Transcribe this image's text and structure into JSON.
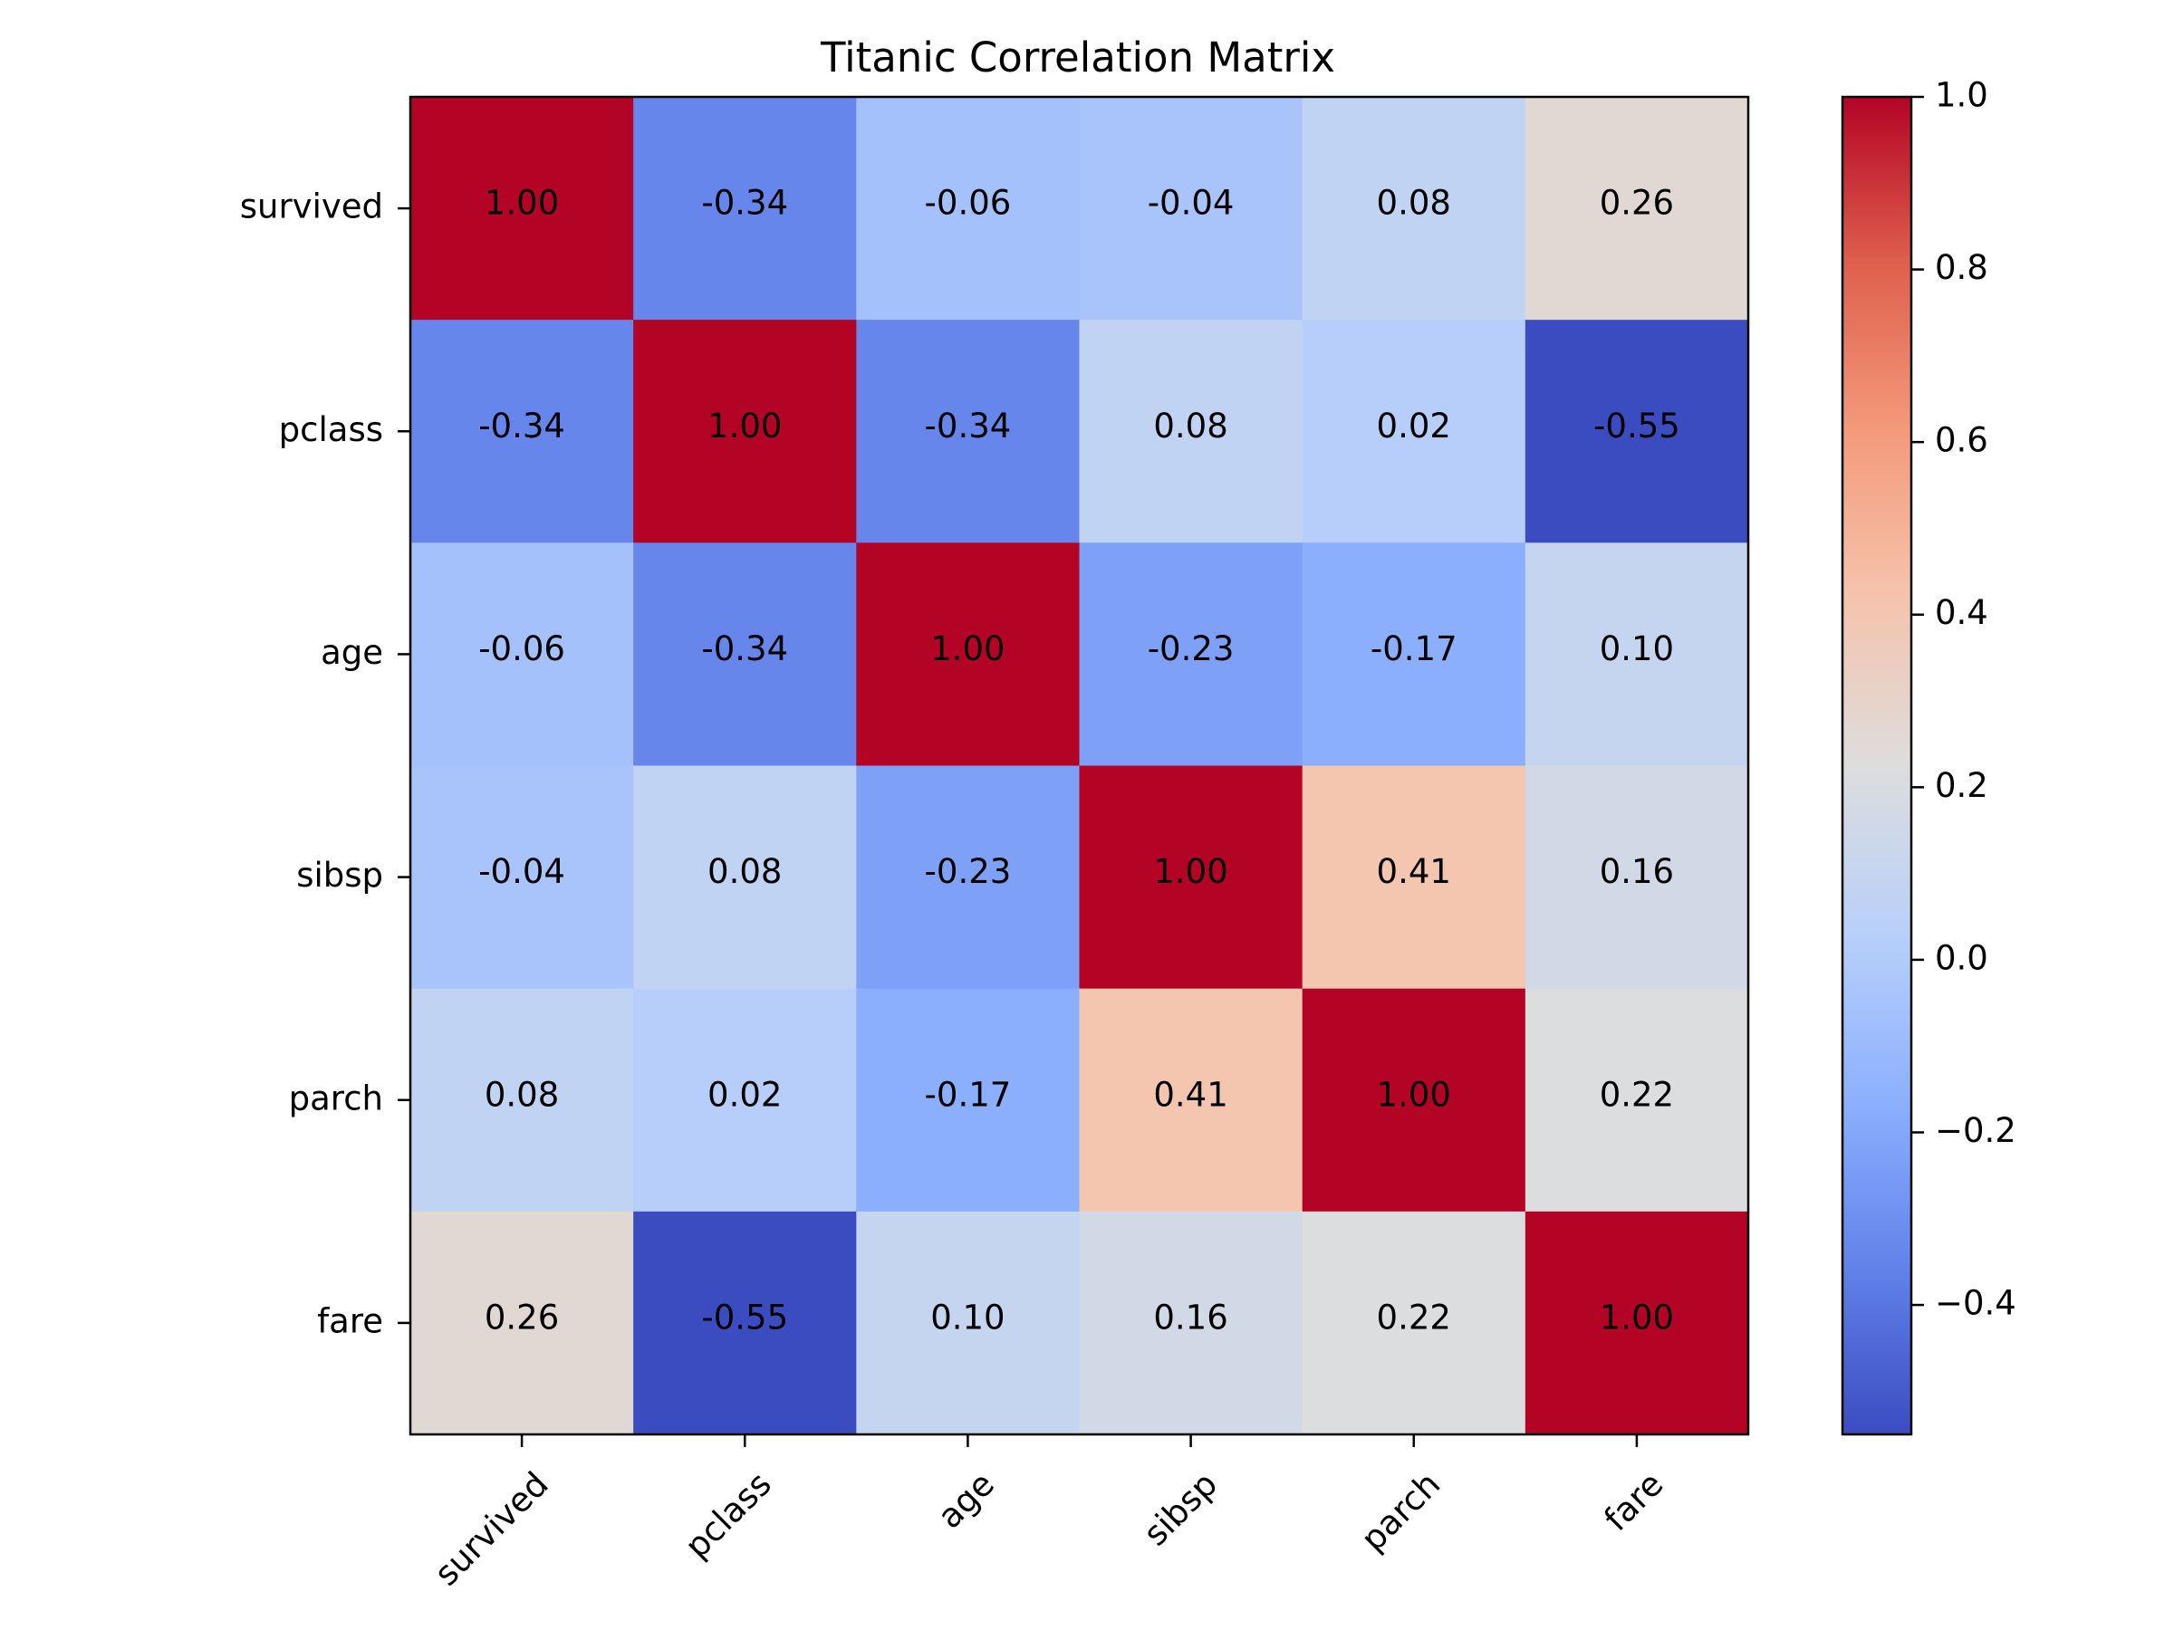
{
  "chart_data": {
    "type": "heatmap",
    "title": "Titanic Correlation Matrix",
    "xlabel": "",
    "ylabel": "",
    "x_categories": [
      "survived",
      "pclass",
      "age",
      "sibsp",
      "parch",
      "fare"
    ],
    "y_categories": [
      "survived",
      "pclass",
      "age",
      "sibsp",
      "parch",
      "fare"
    ],
    "values": [
      [
        1.0,
        -0.34,
        -0.06,
        -0.04,
        0.08,
        0.26
      ],
      [
        -0.34,
        1.0,
        -0.34,
        0.08,
        0.02,
        -0.55
      ],
      [
        -0.06,
        -0.34,
        1.0,
        -0.23,
        -0.17,
        0.1
      ],
      [
        -0.04,
        0.08,
        -0.23,
        1.0,
        0.41,
        0.16
      ],
      [
        0.08,
        0.02,
        -0.17,
        0.41,
        1.0,
        0.22
      ],
      [
        0.26,
        -0.55,
        0.1,
        0.16,
        0.22,
        1.0
      ]
    ],
    "value_format": "2 decimals",
    "colormap": "coolwarm",
    "color_range": [
      -0.55,
      1.0
    ],
    "colorbar": {
      "ticks": [
        -0.4,
        -0.2,
        0.0,
        0.2,
        0.4,
        0.6,
        0.8,
        1.0
      ],
      "tick_labels": [
        "−0.4",
        "−0.2",
        "0.0",
        "0.2",
        "0.4",
        "0.6",
        "0.8",
        "1.0"
      ],
      "placement": "right"
    },
    "x_tick_rotation_deg": 45,
    "grid": false
  }
}
